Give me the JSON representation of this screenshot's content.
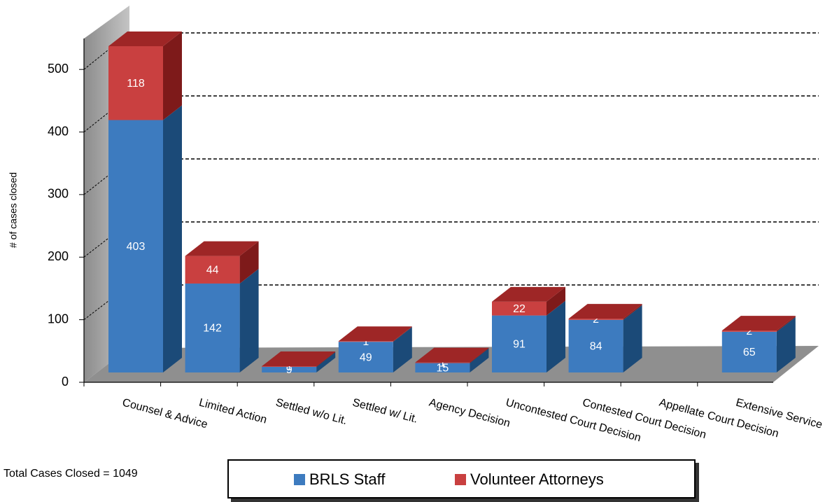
{
  "chart_data": {
    "type": "bar3d_stacked",
    "y_label": "# of cases closed",
    "annotation": "Total Cases Closed = 1049",
    "categories": [
      "Counsel & Advice",
      "Limited Action",
      "Settled w/o Lit.",
      "Settled w/ Lit.",
      "Agency Decision",
      "Uncontested Court Decision",
      "Contested Court Decision",
      "Appellate Court Decision",
      "Extensive Service"
    ],
    "series": [
      {
        "name": "BRLS Staff",
        "color": "#3d7bbf",
        "side_color": "#1b4a78",
        "top_color": "#5b93d3",
        "values": [
          403,
          142,
          9,
          49,
          15,
          91,
          84,
          null,
          65
        ]
      },
      {
        "name": "Volunteer Attorneys",
        "color": "#c94040",
        "side_color": "#7e1a1a",
        "top_color": "#9e2626",
        "values": [
          118,
          44,
          1,
          1,
          1,
          22,
          2,
          null,
          2
        ]
      }
    ],
    "ylim": [
      0,
      550
    ],
    "yticks": [
      0,
      100,
      200,
      300,
      400,
      500
    ],
    "grid": true
  }
}
